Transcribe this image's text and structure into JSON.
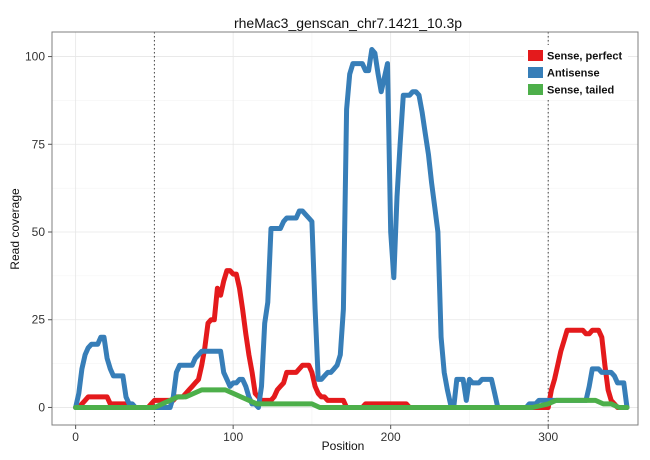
{
  "chart_data": {
    "type": "line",
    "title": "rheMac3_genscan_chr7.1421_10.3p",
    "xlabel": "Position",
    "ylabel": "Read coverage",
    "xlim": [
      -15,
      357
    ],
    "ylim": [
      -5,
      107
    ],
    "x_ticks": [
      0,
      100,
      200,
      300
    ],
    "y_ticks": [
      0,
      25,
      50,
      75,
      100
    ],
    "grid": true,
    "legend_position": "top-right",
    "vlines": [
      50,
      300
    ],
    "series": [
      {
        "name": "Sense, perfect",
        "color": "#E41A1C",
        "x": [
          0,
          2,
          4,
          6,
          8,
          10,
          12,
          14,
          16,
          18,
          20,
          22,
          24,
          26,
          28,
          30,
          32,
          34,
          36,
          38,
          40,
          42,
          44,
          46,
          48,
          50,
          52,
          54,
          56,
          58,
          60,
          62,
          64,
          66,
          68,
          70,
          72,
          74,
          76,
          78,
          80,
          82,
          84,
          86,
          88,
          90,
          92,
          94,
          96,
          98,
          100,
          102,
          104,
          106,
          108,
          110,
          112,
          114,
          116,
          118,
          120,
          122,
          124,
          126,
          128,
          130,
          132,
          134,
          136,
          138,
          140,
          142,
          144,
          146,
          148,
          150,
          152,
          154,
          156,
          158,
          160,
          162,
          164,
          166,
          168,
          170,
          172,
          174,
          176,
          178,
          180,
          182,
          184,
          186,
          188,
          190,
          192,
          194,
          196,
          198,
          200,
          202,
          204,
          206,
          208,
          210,
          212,
          214,
          216,
          218,
          220,
          222,
          224,
          226,
          228,
          230,
          232,
          234,
          236,
          238,
          240,
          242,
          244,
          246,
          248,
          250,
          252,
          254,
          256,
          258,
          260,
          262,
          264,
          266,
          268,
          270,
          272,
          274,
          276,
          278,
          280,
          282,
          284,
          286,
          288,
          290,
          292,
          294,
          296,
          298,
          300,
          302,
          304,
          306,
          308,
          310,
          312,
          314,
          316,
          318,
          320,
          322,
          324,
          326,
          328,
          330,
          332,
          334,
          336,
          338,
          340,
          342,
          344,
          346,
          348,
          350
        ],
        "y": [
          0,
          0,
          1,
          2,
          3,
          3,
          3,
          3,
          3,
          3,
          3,
          1,
          1,
          1,
          1,
          1,
          1,
          0,
          0,
          0,
          0,
          0,
          0,
          0,
          1,
          2,
          2,
          2,
          2,
          2,
          2,
          2,
          3,
          3,
          3,
          4,
          5,
          6,
          7,
          8,
          12,
          17,
          24,
          25,
          25,
          34,
          32,
          36,
          39,
          39,
          38,
          38,
          34,
          28,
          21,
          15,
          10,
          4,
          3,
          2,
          2,
          2,
          2,
          3,
          5,
          6,
          7,
          10,
          10,
          10,
          10,
          11,
          12,
          12,
          12,
          10,
          6,
          4,
          3,
          3,
          2,
          2,
          2,
          2,
          2,
          2,
          0,
          0,
          0,
          0,
          0,
          0,
          1,
          1,
          1,
          1,
          1,
          1,
          1,
          1,
          1,
          1,
          1,
          1,
          1,
          1,
          0,
          0,
          0,
          0,
          0,
          0,
          0,
          0,
          0,
          0,
          0,
          0,
          0,
          0,
          0,
          0,
          0,
          0,
          0,
          0,
          0,
          0,
          0,
          0,
          0,
          0,
          0,
          0,
          0,
          0,
          0,
          0,
          0,
          0,
          0,
          0,
          0,
          0,
          0,
          0,
          0,
          0,
          0,
          0,
          0,
          5,
          8,
          12,
          16,
          19,
          22,
          22,
          22,
          22,
          22,
          22,
          21,
          21,
          22,
          22,
          22,
          20,
          12,
          5,
          2,
          1,
          0,
          0,
          0,
          0
        ]
      },
      {
        "name": "Antisense",
        "color": "#377EB8",
        "x": [
          0,
          2,
          4,
          6,
          8,
          10,
          12,
          14,
          16,
          18,
          20,
          22,
          24,
          26,
          28,
          30,
          32,
          34,
          36,
          38,
          40,
          42,
          44,
          46,
          48,
          50,
          52,
          54,
          56,
          58,
          60,
          62,
          64,
          66,
          68,
          70,
          72,
          74,
          76,
          78,
          80,
          82,
          84,
          86,
          88,
          90,
          92,
          94,
          96,
          98,
          100,
          102,
          104,
          106,
          108,
          110,
          112,
          114,
          116,
          118,
          120,
          122,
          124,
          126,
          128,
          130,
          132,
          134,
          136,
          138,
          140,
          142,
          144,
          146,
          148,
          150,
          152,
          154,
          156,
          158,
          160,
          162,
          164,
          166,
          168,
          170,
          172,
          174,
          176,
          178,
          180,
          182,
          184,
          186,
          188,
          190,
          192,
          194,
          196,
          198,
          200,
          202,
          204,
          206,
          208,
          210,
          212,
          214,
          216,
          218,
          220,
          222,
          224,
          226,
          228,
          230,
          232,
          234,
          236,
          238,
          240,
          242,
          244,
          246,
          248,
          250,
          252,
          254,
          256,
          258,
          260,
          262,
          264,
          266,
          268,
          270,
          272,
          274,
          276,
          278,
          280,
          282,
          284,
          286,
          288,
          290,
          292,
          294,
          296,
          298,
          300,
          302,
          304,
          306,
          308,
          310,
          312,
          314,
          316,
          318,
          320,
          322,
          324,
          326,
          328,
          330,
          332,
          334,
          336,
          338,
          340,
          342,
          344,
          346,
          348,
          350
        ],
        "y": [
          0,
          4,
          11,
          15,
          17,
          18,
          18,
          18,
          20,
          20,
          14,
          11,
          9,
          9,
          9,
          9,
          3,
          1,
          1,
          0,
          0,
          0,
          0,
          0,
          0,
          0,
          0,
          0,
          0,
          0,
          0,
          3,
          10,
          12,
          12,
          12,
          12,
          12,
          14,
          15,
          16,
          16,
          16,
          16,
          16,
          16,
          16,
          10,
          8,
          6,
          7,
          7,
          8,
          8,
          6,
          3,
          1,
          1,
          0,
          6,
          24,
          30,
          51,
          51,
          51,
          51,
          53,
          54,
          54,
          54,
          54,
          56,
          56,
          55,
          54,
          53,
          28,
          8,
          8,
          9,
          10,
          10,
          11,
          12,
          15,
          28,
          85,
          95,
          98,
          98,
          98,
          98,
          96,
          96,
          102,
          101,
          95,
          90,
          94,
          98,
          50,
          37,
          60,
          75,
          89,
          89,
          89,
          90,
          90,
          89,
          84,
          78,
          72,
          64,
          57,
          50,
          20,
          10,
          5,
          1,
          0,
          8,
          8,
          8,
          2,
          8,
          7,
          7,
          7,
          8,
          8,
          8,
          8,
          4,
          0,
          0,
          0,
          0,
          0,
          0,
          0,
          0,
          0,
          0,
          1,
          1,
          1,
          2,
          2,
          2,
          2,
          2,
          2,
          2,
          2,
          2,
          2,
          2,
          2,
          2,
          2,
          2,
          2,
          6,
          11,
          11,
          11,
          10,
          10,
          10,
          10,
          9,
          7,
          7,
          7,
          0
        ]
      },
      {
        "name": "Sense, tailed",
        "color": "#4DAF4A",
        "x": [
          0,
          5,
          10,
          15,
          20,
          25,
          30,
          35,
          40,
          45,
          50,
          55,
          60,
          65,
          70,
          75,
          80,
          85,
          90,
          95,
          100,
          105,
          110,
          115,
          120,
          125,
          130,
          135,
          140,
          145,
          150,
          155,
          160,
          170,
          180,
          190,
          200,
          210,
          220,
          230,
          240,
          250,
          260,
          270,
          280,
          290,
          300,
          305,
          310,
          315,
          320,
          325,
          330,
          335,
          340,
          345,
          350
        ],
        "y": [
          0,
          0,
          0,
          0,
          0,
          0,
          0,
          0,
          0,
          0,
          0,
          1,
          2,
          3,
          3,
          4,
          5,
          5,
          5,
          5,
          4,
          3,
          2,
          1,
          1,
          1,
          1,
          1,
          1,
          1,
          1,
          0,
          0,
          0,
          0,
          0,
          0,
          0,
          0,
          0,
          0,
          0,
          0,
          0,
          0,
          0,
          1,
          2,
          2,
          2,
          2,
          2,
          2,
          1,
          1,
          0,
          0
        ]
      }
    ]
  }
}
